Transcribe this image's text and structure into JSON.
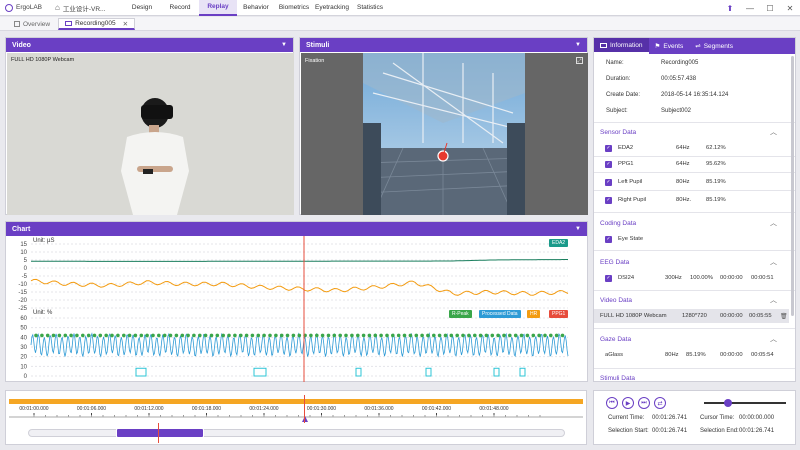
{
  "app": {
    "name": "ErgoLAB",
    "home_label": "工业设计-VR..."
  },
  "menu": [
    "Design",
    "Record",
    "Replay",
    "Behavior",
    "Biometrics",
    "Eyetracking",
    "Statistics"
  ],
  "active_menu": "Replay",
  "doc_tabs": {
    "overview": "Overview",
    "recording": "Recording005"
  },
  "video_panel": {
    "title": "Video",
    "camera_label": "FULL HD 1080P Webcam"
  },
  "stimuli_panel": {
    "title": "Stimuli",
    "fixation_label": "Fixation"
  },
  "chart_panel": {
    "title": "Chart"
  },
  "chart_data": [
    {
      "type": "line",
      "ylabel": "Unit: µS",
      "yticks": [
        15,
        10,
        5,
        0,
        -5,
        -10,
        -15,
        -20,
        -25
      ],
      "ylim": [
        -25,
        15
      ],
      "legend": [
        {
          "name": "EDA2",
          "color": "#1a9a8a"
        }
      ],
      "series": [
        {
          "name": "EDA2",
          "color": "#1a7f5e",
          "values": [
            4.2,
            4.2,
            4.1,
            4.1,
            4.1,
            4.2,
            4.2,
            4.2,
            4.3,
            4.3,
            4.3,
            4.4,
            5.0,
            5.2,
            5.3
          ]
        },
        {
          "name": "HR",
          "color": "#f39c12",
          "values": [
            -8,
            -10,
            -11,
            -9,
            -10,
            -10,
            -12,
            -13,
            -14,
            -12,
            -9,
            -16,
            -15,
            -16,
            -15
          ]
        }
      ]
    },
    {
      "type": "line",
      "ylabel": "Unit: %",
      "yticks": [
        60,
        50,
        40,
        30,
        20,
        10,
        0
      ],
      "ylim": [
        0,
        60
      ],
      "legend": [
        {
          "name": "R-Peak",
          "color": "#3aa64a"
        },
        {
          "name": "Processed Data",
          "color": "#2e9bd6"
        },
        {
          "name": "HR",
          "color": "#f39c12"
        },
        {
          "name": "PPG1",
          "color": "#e74c3c"
        }
      ]
    }
  ],
  "right_panel": {
    "tabs": [
      "Information",
      "Events",
      "Segments"
    ],
    "info": [
      {
        "k": "Name:",
        "v": "Recording005"
      },
      {
        "k": "Duration:",
        "v": "00:05:57.438"
      },
      {
        "k": "Create Date:",
        "v": "2018-05-14 16:35:14.124"
      },
      {
        "k": "Subject:",
        "v": "Subject002"
      }
    ],
    "sensor_title": "Sensor Data",
    "sensors": [
      {
        "name": "EDA2",
        "rate": "64Hz",
        "pct": "62.12%"
      },
      {
        "name": "PPG1",
        "rate": "64Hz",
        "pct": "95.62%"
      },
      {
        "name": "Left Pupil",
        "rate": "80Hz",
        "pct": "85.19%"
      },
      {
        "name": "Right Pupil",
        "rate": "80Hz.",
        "pct": "85.19%"
      }
    ],
    "coding_title": "Coding Data",
    "coding_item": "Eye State",
    "eeg_title": "EEG Data",
    "eeg": {
      "name": "DSI24",
      "rate": "300Hz",
      "pct": "100.00%",
      "start": "00:00:00",
      "end": "00:00:51"
    },
    "video_title": "Video Data",
    "video": {
      "name": "FULL HD 1080P Webcam",
      "res": "1280*720",
      "start": "00:00:00",
      "end": "00:05:55"
    },
    "gaze_title": "Gaze Data",
    "gaze": {
      "name": "aGlass",
      "rate": "80Hz",
      "pct": "85.19%",
      "start": "00:00:00",
      "end": "00:05:54"
    },
    "stimuli_title": "Stimuli Data"
  },
  "timeline": {
    "ticks": [
      "00:01:00.000",
      "00:01:06.000",
      "00:01:12.000",
      "00:01:18.000",
      "00:01:24.000",
      "00:01:30.000",
      "00:01:36.000",
      "00:01:42.000",
      "00:01:48.000"
    ]
  },
  "playback": {
    "current_label": "Current Time:",
    "current": "00:01:26.741",
    "cursor_label": "Cursor Time:",
    "cursor": "00:00:00.000",
    "sel_start_label": "Selection Start:",
    "sel_start": "00:01:26.741",
    "sel_end_label": "Selection End:",
    "sel_end": "00:01:26.741"
  },
  "colors": {
    "accent": "#6a3fc4",
    "timeline_bar": "#f5a623"
  }
}
